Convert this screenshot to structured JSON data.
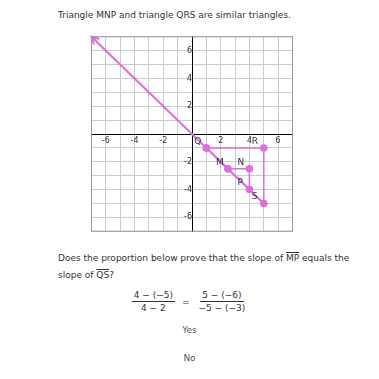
{
  "title": "Triangle MNP and triangle QRS are similar triangles.",
  "chart_data": {
    "type": "scatter",
    "xlim": [
      -7,
      7
    ],
    "ylim": [
      -7,
      7
    ],
    "xticks": [
      -6,
      -4,
      -2,
      2,
      4,
      6
    ],
    "yticks": [
      -6,
      -4,
      -2,
      2,
      4,
      6
    ],
    "grid": true,
    "color": "#dd6fdd",
    "line": {
      "x": [
        -7,
        5
      ],
      "y": [
        7,
        -5
      ]
    },
    "points": [
      {
        "label": "Q",
        "x": 1,
        "y": -1
      },
      {
        "label": "R",
        "x": 5,
        "y": -1
      },
      {
        "label": "S",
        "x": 5,
        "y": -5
      },
      {
        "label": "M",
        "x": 2.5,
        "y": -2.5
      },
      {
        "label": "N",
        "x": 4,
        "y": -2.5
      },
      {
        "label": "P",
        "x": 4,
        "y": -4
      }
    ],
    "polygons": [
      [
        "M",
        "N",
        "P"
      ],
      [
        "Q",
        "R",
        "S"
      ]
    ]
  },
  "question": [
    {
      "text": "Does the proportion below prove that the slope of "
    },
    {
      "segment": "MP"
    },
    {
      "text": " equals the slope of "
    },
    {
      "segment": "QS"
    },
    {
      "text": "?"
    }
  ],
  "proportion": {
    "left": {
      "numerator": "4 − (−5)",
      "denominator": "4 − 2"
    },
    "relation": "=",
    "right": {
      "numerator": "5 − (−6)",
      "denominator": "−5 − (−3)"
    }
  },
  "choices": [
    "Yes",
    "No"
  ]
}
